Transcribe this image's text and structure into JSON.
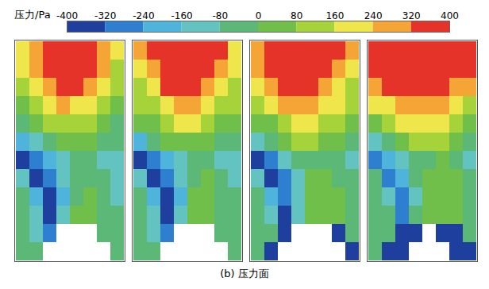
{
  "chart_data": {
    "type": "heatmap",
    "caption": "(b) 压力面",
    "colorbar": {
      "label": "压力/Pa",
      "range": [
        -400,
        400
      ],
      "ticks": [
        -400,
        -320,
        -240,
        -160,
        -80,
        0,
        80,
        160,
        240,
        320,
        400
      ]
    },
    "colors": [
      "#1f3f9e",
      "#2f7fd0",
      "#4fb4dc",
      "#63c3c0",
      "#5cb877",
      "#6fbf4a",
      "#a6d23a",
      "#eee64a",
      "#f5a535",
      "#e5332a"
    ],
    "panels": [
      {
        "cells": [
          [
            200,
            300,
            360,
            380,
            380,
            360,
            300,
            180
          ],
          [
            160,
            260,
            360,
            380,
            380,
            340,
            260,
            140
          ],
          [
            120,
            200,
            300,
            340,
            320,
            260,
            180,
            100
          ],
          [
            60,
            120,
            200,
            240,
            220,
            180,
            120,
            60
          ],
          [
            -40,
            20,
            100,
            140,
            140,
            100,
            40,
            -20
          ],
          [
            -200,
            -100,
            -20,
            40,
            40,
            20,
            -40,
            -80
          ],
          [
            -360,
            -300,
            -200,
            -120,
            -80,
            -60,
            -120,
            -160
          ],
          [
            -120,
            -360,
            -300,
            -140,
            -40,
            -20,
            -60,
            -120
          ],
          [
            -80,
            -200,
            -340,
            -200,
            -20,
            20,
            -20,
            -100
          ],
          [
            -60,
            -120,
            -360,
            -140,
            0,
            20,
            -20,
            -80
          ],
          [
            -40,
            -100,
            -300,
            null,
            null,
            null,
            -40,
            -60
          ],
          [
            -40,
            -40,
            null,
            null,
            null,
            null,
            null,
            -40
          ]
        ]
      },
      {
        "cells": [
          [
            240,
            340,
            380,
            390,
            390,
            370,
            320,
            200
          ],
          [
            200,
            300,
            370,
            390,
            390,
            350,
            280,
            160
          ],
          [
            140,
            220,
            320,
            360,
            340,
            280,
            200,
            120
          ],
          [
            80,
            140,
            220,
            260,
            240,
            200,
            140,
            80
          ],
          [
            0,
            40,
            120,
            160,
            160,
            120,
            60,
            0
          ],
          [
            -180,
            -80,
            0,
            60,
            60,
            40,
            -20,
            -60
          ],
          [
            -360,
            -280,
            -180,
            -100,
            -60,
            -40,
            -100,
            -140
          ],
          [
            -120,
            -360,
            -280,
            -120,
            -20,
            0,
            -40,
            -100
          ],
          [
            -80,
            -200,
            -340,
            -180,
            0,
            20,
            -20,
            -80
          ],
          [
            -60,
            -120,
            -360,
            -120,
            0,
            20,
            -20,
            -60
          ],
          [
            -40,
            -100,
            -300,
            null,
            null,
            null,
            -40,
            -60
          ],
          [
            -40,
            -40,
            null,
            null,
            null,
            null,
            null,
            -40
          ]
        ]
      },
      {
        "cells": [
          [
            280,
            360,
            390,
            390,
            390,
            380,
            340,
            240
          ],
          [
            240,
            340,
            380,
            390,
            390,
            370,
            300,
            200
          ],
          [
            180,
            260,
            340,
            370,
            360,
            300,
            220,
            140
          ],
          [
            100,
            160,
            240,
            280,
            260,
            220,
            160,
            100
          ],
          [
            20,
            60,
            140,
            180,
            180,
            140,
            80,
            20
          ],
          [
            -160,
            -60,
            20,
            80,
            80,
            60,
            0,
            -40
          ],
          [
            -340,
            -260,
            -160,
            -80,
            -40,
            -20,
            -80,
            -120
          ],
          [
            -100,
            -340,
            -260,
            -100,
            0,
            20,
            -20,
            -80
          ],
          [
            -60,
            -180,
            -320,
            -160,
            20,
            40,
            0,
            -60
          ],
          [
            -40,
            -100,
            -340,
            -100,
            20,
            20,
            0,
            -40
          ],
          [
            -40,
            -80,
            -380,
            null,
            null,
            null,
            -360,
            -40
          ],
          [
            -40,
            -380,
            null,
            null,
            null,
            null,
            null,
            -380
          ]
        ]
      },
      {
        "cells": [
          [
            380,
            390,
            390,
            390,
            390,
            390,
            390,
            380
          ],
          [
            340,
            380,
            390,
            390,
            390,
            390,
            370,
            320
          ],
          [
            260,
            320,
            360,
            380,
            380,
            360,
            300,
            240
          ],
          [
            160,
            220,
            280,
            300,
            300,
            260,
            200,
            140
          ],
          [
            60,
            100,
            160,
            200,
            200,
            160,
            100,
            40
          ],
          [
            -120,
            -20,
            60,
            100,
            100,
            80,
            20,
            -20
          ],
          [
            -300,
            -220,
            -140,
            -60,
            -20,
            0,
            -60,
            -100
          ],
          [
            -60,
            -280,
            -220,
            -80,
            20,
            40,
            0,
            -60
          ],
          [
            -40,
            -140,
            -260,
            -120,
            40,
            60,
            20,
            -40
          ],
          [
            -20,
            -80,
            -280,
            -80,
            40,
            40,
            0,
            -40
          ],
          [
            -20,
            -60,
            -360,
            -380,
            null,
            -380,
            -380,
            -20
          ],
          [
            -20,
            -380,
            -380,
            null,
            null,
            null,
            -380,
            -380
          ]
        ]
      }
    ]
  }
}
